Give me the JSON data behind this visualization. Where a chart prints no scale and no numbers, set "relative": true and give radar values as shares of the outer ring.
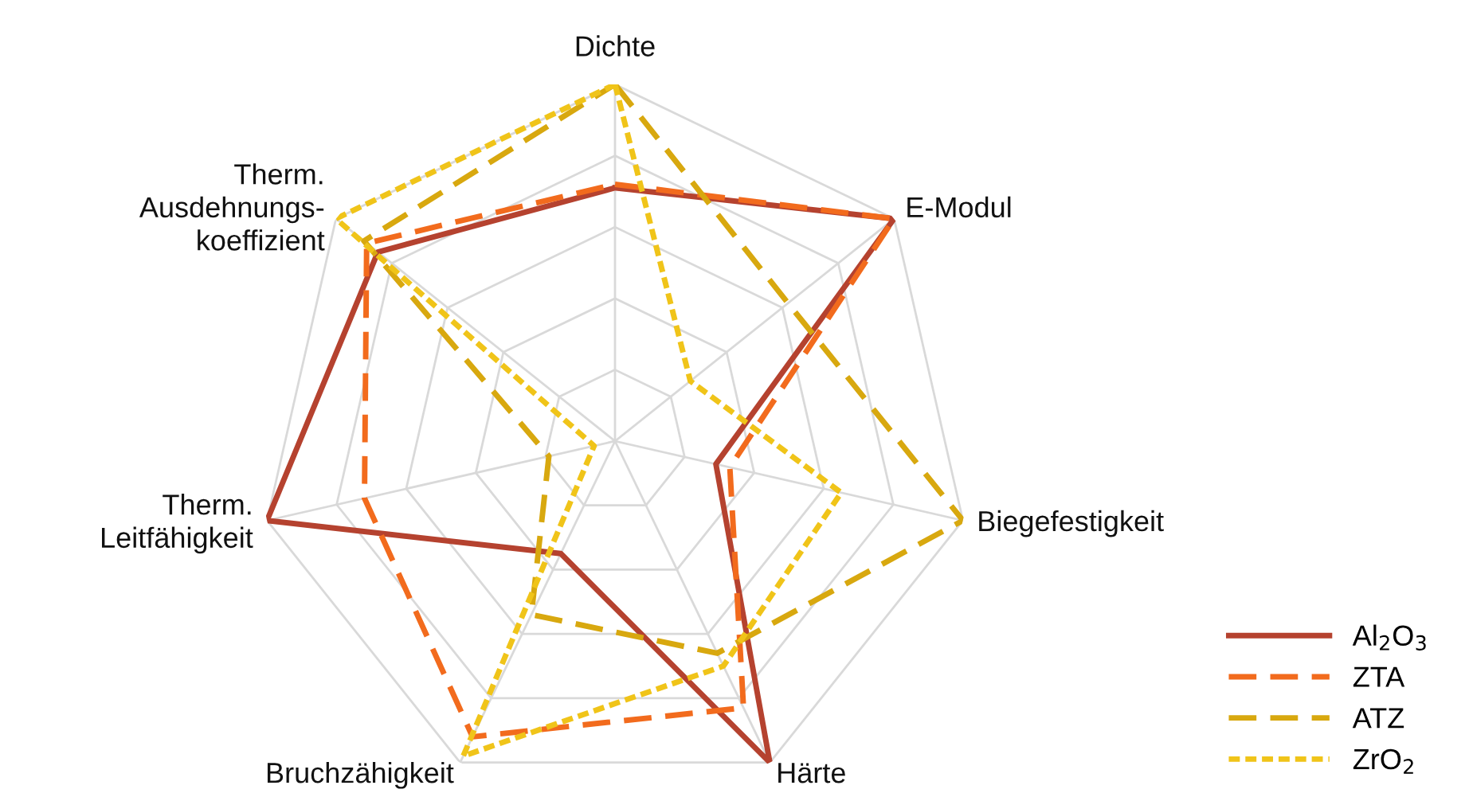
{
  "chart_data": {
    "type": "radar",
    "relative": true,
    "categories": [
      "Dichte",
      "E-Modul",
      "Biegefestigkeit",
      "Härte",
      "Bruchzähigkeit",
      "Therm.\nLeitfähigkeit",
      "Therm.\nAusdehnungs-\nkoeffizient"
    ],
    "series": [
      {
        "name": "Al$_{2}$O$_{3}$",
        "color": "#b5422f",
        "line_style": "solid",
        "values": [
          0.71,
          1.0,
          0.29,
          1.0,
          0.35,
          1.0,
          0.85
        ]
      },
      {
        "name": "ZTA",
        "color": "#f26b1d",
        "line_style": "dashed",
        "values": [
          0.72,
          1.0,
          0.33,
          0.83,
          0.92,
          0.72,
          0.89
        ]
      },
      {
        "name": "ATZ",
        "color": "#d8a80f",
        "line_style": "dashed",
        "values": [
          1.0,
          0.62,
          1.0,
          0.66,
          0.54,
          0.19,
          0.9
        ]
      },
      {
        "name": "ZrO$_{2}$",
        "color": "#f0c419",
        "line_style": "dotted",
        "values": [
          1.0,
          0.27,
          0.65,
          0.7,
          0.98,
          0.06,
          1.0
        ]
      }
    ],
    "grid": true,
    "legend": "bottom right"
  }
}
